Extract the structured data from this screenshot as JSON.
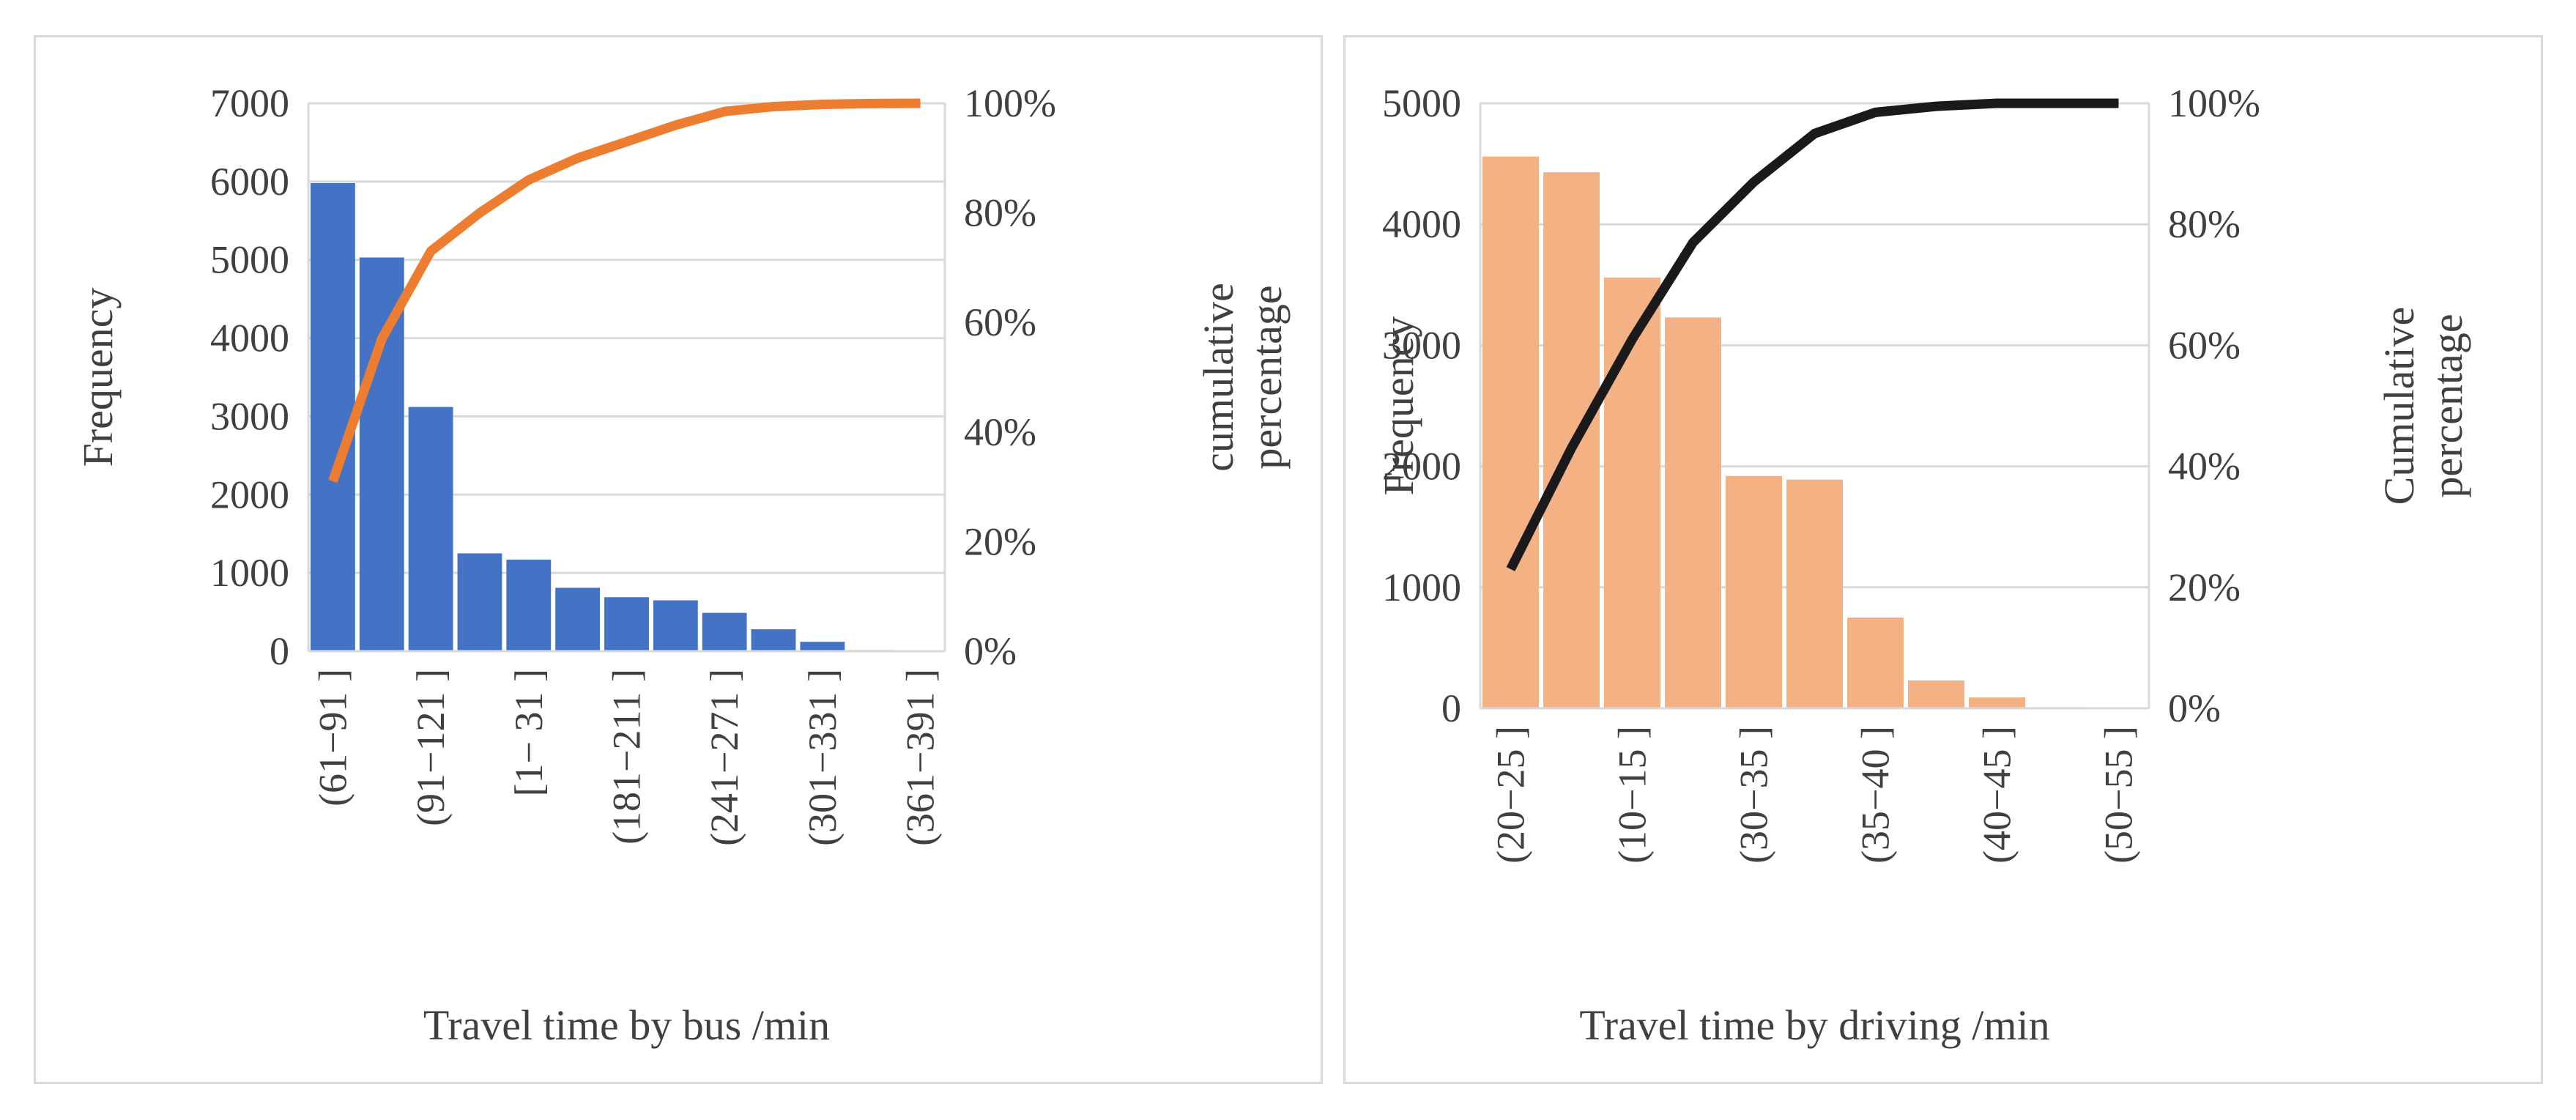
{
  "chart_data": [
    {
      "type": "bar+line",
      "title": "",
      "xlabel": "Travel time by bus /min",
      "ylabel": "Frequency",
      "y2label_lines": [
        "cumulative",
        "percentage"
      ],
      "ylim": [
        0,
        7000
      ],
      "yticks": [
        "7000",
        "6000",
        "5000",
        "4000",
        "3000",
        "2000",
        "1000",
        "0"
      ],
      "y2lim": [
        0,
        100
      ],
      "y2ticks": [
        "100%",
        "80%",
        "60%",
        "40%",
        "20%",
        "0%"
      ],
      "categories": [
        "(61−91 ]",
        "",
        "(91−121 ]",
        "",
        "[1− 31 ]",
        "",
        "(181−211 ]",
        "",
        "(241−271 ]",
        "",
        "(301−331 ]",
        "",
        "(361−391 ]"
      ],
      "series": [
        {
          "kind": "bar",
          "values": [
            5980,
            5030,
            3120,
            1250,
            1170,
            810,
            690,
            650,
            490,
            280,
            120,
            15,
            5
          ]
        },
        {
          "kind": "line",
          "values": [
            31,
            57,
            73,
            80,
            86,
            90,
            93,
            96,
            98.5,
            99.4,
            99.8,
            99.95,
            100
          ]
        }
      ],
      "bar_color": "#4472c4",
      "line_color": "#ed7d31",
      "grid": true
    },
    {
      "type": "bar+line",
      "title": "",
      "xlabel": "Travel time by driving /min",
      "ylabel": "Frequency",
      "y2label_lines": [
        "Cumulative",
        "percentage"
      ],
      "ylim": [
        0,
        5000
      ],
      "yticks": [
        "5000",
        "4000",
        "3000",
        "2000",
        "1000",
        "0"
      ],
      "y2lim": [
        0,
        100
      ],
      "y2ticks": [
        "100%",
        "80%",
        "60%",
        "40%",
        "20%",
        "0%"
      ],
      "categories": [
        "(20−25 ]",
        "",
        "(10−15 ]",
        "",
        "(30−35 ]",
        "",
        "(35−40 ]",
        "",
        "(40−45 ]",
        "",
        "(50−55 ]"
      ],
      "series": [
        {
          "kind": "bar",
          "values": [
            4560,
            4430,
            3560,
            3230,
            1920,
            1890,
            750,
            230,
            90,
            10,
            5
          ]
        },
        {
          "kind": "line",
          "values": [
            23,
            43,
            61,
            77,
            87,
            95,
            98.5,
            99.5,
            100,
            100,
            100
          ]
        }
      ],
      "bar_color": "#f4b183",
      "line_color": "#1a1a1a",
      "grid": true
    }
  ]
}
